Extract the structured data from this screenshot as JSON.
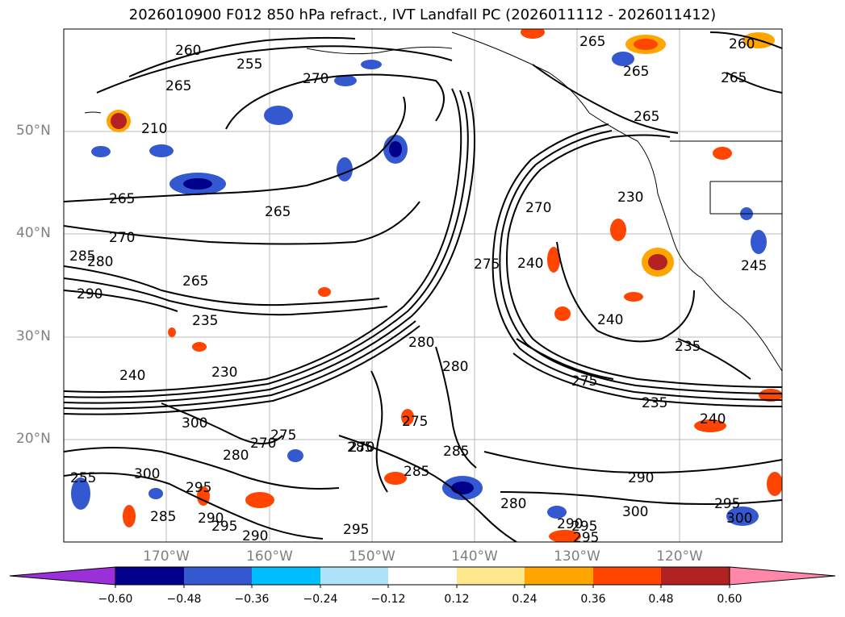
{
  "title": "2026010900 F012 850 hPa refract., IVT Landfall PC (2026011112 - 2026011412)",
  "lat_labels": [
    "50°N",
    "40°N",
    "30°N",
    "20°N"
  ],
  "lon_labels": [
    "170°W",
    "160°W",
    "150°W",
    "140°W",
    "130°W",
    "120°W"
  ],
  "contour_labels": [
    "260",
    "255",
    "270",
    "265",
    "265",
    "210",
    "265",
    "265",
    "270",
    "280",
    "285",
    "290",
    "265",
    "235",
    "240",
    "230",
    "270",
    "280",
    "275",
    "240",
    "280",
    "275",
    "240",
    "235",
    "230",
    "265",
    "265",
    "260",
    "265",
    "300",
    "280",
    "270",
    "275",
    "285",
    "270",
    "285",
    "300",
    "295",
    "285",
    "290",
    "295",
    "290",
    "295",
    "285",
    "290",
    "300",
    "295",
    "295",
    "290",
    "295",
    "300",
    "275",
    "255",
    "280",
    "240",
    "235",
    "245"
  ],
  "colorbar": {
    "ticks": [
      "−0.60",
      "−0.48",
      "−0.36",
      "−0.24",
      "−0.12",
      "0.12",
      "0.24",
      "0.36",
      "0.48",
      "0.60"
    ],
    "colors": [
      "#9b30d9",
      "#00008b",
      "#3358d0",
      "#00bfff",
      "#aee4fa",
      "#ffffff",
      "#ffe88c",
      "#ffa500",
      "#ff4500",
      "#b22222",
      "#ff88aa",
      "#ff88aa"
    ],
    "low_color": "#9b30d9",
    "high_color": "#ff88aa"
  }
}
